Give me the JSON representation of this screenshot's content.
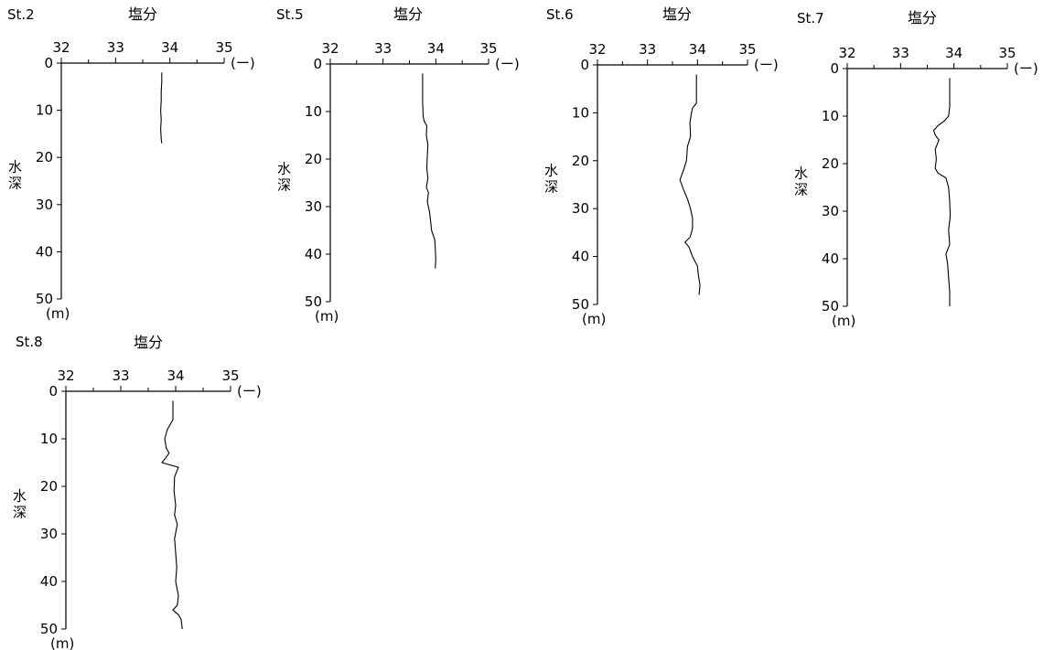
{
  "chart_data": [
    {
      "type": "line",
      "station": "St.2",
      "title": "塩分",
      "xlabel_unit": "(ー)",
      "ylabel": "水深",
      "ylabel_unit": "(m)",
      "xlim": [
        32,
        35
      ],
      "ylim": [
        0,
        50
      ],
      "x_ticks": [
        "32",
        "33",
        "34",
        "35"
      ],
      "y_ticks": [
        "0",
        "10",
        "20",
        "30",
        "40",
        "50"
      ],
      "y_reversed": true,
      "series": [
        {
          "x": [
            33.85,
            33.85,
            33.84,
            33.84,
            33.83,
            33.84,
            33.83,
            33.84,
            33.85
          ],
          "y": [
            2,
            4,
            6,
            8,
            10,
            12,
            14,
            16,
            17
          ]
        }
      ]
    },
    {
      "type": "line",
      "station": "St.5",
      "title": "塩分",
      "xlabel_unit": "(ー)",
      "ylabel": "水深",
      "ylabel_unit": "(m)",
      "xlim": [
        32,
        35
      ],
      "ylim": [
        0,
        50
      ],
      "x_ticks": [
        "32",
        "33",
        "34",
        "35"
      ],
      "y_ticks": [
        "0",
        "10",
        "20",
        "30",
        "40",
        "50"
      ],
      "y_reversed": true,
      "series": [
        {
          "x": [
            33.75,
            33.75,
            33.75,
            33.76,
            33.78,
            33.83,
            33.82,
            33.85,
            33.84,
            33.83,
            33.85,
            33.82,
            33.86,
            33.84,
            33.88,
            33.9,
            33.92,
            33.98,
            33.99,
            34.0,
            33.99
          ],
          "y": [
            2,
            5,
            8,
            11,
            12,
            13,
            15,
            17,
            19,
            22,
            24,
            26,
            27,
            29,
            31,
            33,
            35,
            37,
            39,
            41,
            43
          ]
        }
      ]
    },
    {
      "type": "line",
      "station": "St.6",
      "title": "塩分",
      "xlabel_unit": "(ー)",
      "ylabel": "水深",
      "ylabel_unit": "(m)",
      "xlim": [
        32,
        35
      ],
      "ylim": [
        0,
        50
      ],
      "x_ticks": [
        "32",
        "33",
        "34",
        "35"
      ],
      "y_ticks": [
        "0",
        "10",
        "20",
        "30",
        "40",
        "50"
      ],
      "y_reversed": true,
      "series": [
        {
          "x": [
            33.98,
            33.98,
            33.98,
            33.9,
            33.88,
            33.85,
            33.86,
            33.8,
            33.78,
            33.72,
            33.65,
            33.72,
            33.8,
            33.86,
            33.9,
            33.9,
            33.88,
            33.85,
            33.75,
            33.83,
            33.9,
            34.0,
            34.02,
            34.05,
            34.03
          ],
          "y": [
            2,
            5,
            8,
            9,
            10,
            12,
            15,
            17,
            20,
            22,
            24,
            26,
            28,
            30,
            32,
            34,
            35,
            36,
            37,
            38,
            40,
            42,
            44,
            46,
            48
          ]
        }
      ]
    },
    {
      "type": "line",
      "station": "St.7",
      "title": "塩分",
      "xlabel_unit": "(ー)",
      "ylabel": "水深",
      "ylabel_unit": "(m)",
      "xlim": [
        32,
        35
      ],
      "ylim": [
        0,
        50
      ],
      "x_ticks": [
        "32",
        "33",
        "34",
        "35"
      ],
      "y_ticks": [
        "0",
        "10",
        "20",
        "30",
        "40",
        "50"
      ],
      "y_reversed": true,
      "series": [
        {
          "x": [
            33.92,
            33.92,
            33.92,
            33.9,
            33.82,
            33.7,
            33.62,
            33.65,
            33.72,
            33.65,
            33.67,
            33.65,
            33.7,
            33.85,
            33.9,
            33.92,
            33.93,
            33.9,
            33.92,
            33.85,
            33.88,
            33.9,
            33.92,
            33.92
          ],
          "y": [
            2,
            5,
            8,
            10,
            11,
            12,
            13,
            14,
            15,
            17,
            19,
            21,
            22,
            23,
            25,
            28,
            31,
            34,
            37,
            39,
            41,
            44,
            47,
            50
          ]
        }
      ]
    },
    {
      "type": "line",
      "station": "St.8",
      "title": "塩分",
      "xlabel_unit": "(ー)",
      "ylabel": "水深",
      "ylabel_unit": "(m)",
      "xlim": [
        32,
        35
      ],
      "ylim": [
        0,
        50
      ],
      "x_ticks": [
        "32",
        "33",
        "34",
        "35"
      ],
      "y_ticks": [
        "0",
        "10",
        "20",
        "30",
        "40",
        "50"
      ],
      "y_reversed": true,
      "series": [
        {
          "x": [
            33.95,
            33.95,
            33.85,
            33.8,
            33.83,
            33.88,
            33.82,
            33.75,
            34.05,
            33.98,
            33.97,
            34.0,
            33.98,
            34.03,
            33.98,
            34.0,
            34.02,
            34.0,
            34.05,
            34.03,
            33.95,
            34.05,
            34.1,
            34.12
          ],
          "y": [
            2,
            6,
            8,
            10,
            12,
            13,
            14,
            15,
            16,
            18,
            21,
            24,
            26,
            28,
            31,
            34,
            37,
            40,
            43,
            45,
            46,
            47,
            48,
            50
          ]
        }
      ]
    }
  ]
}
